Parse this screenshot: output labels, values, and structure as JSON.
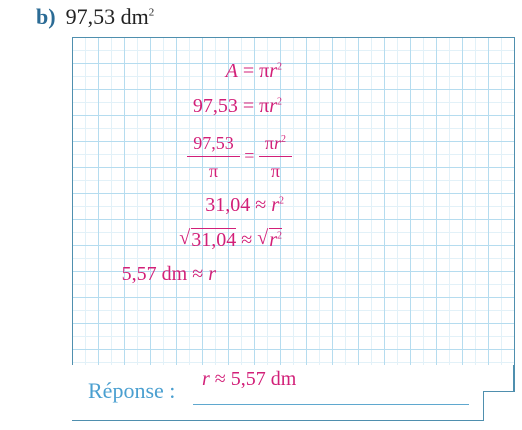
{
  "header": {
    "letter": "b)",
    "value": "97,53 dm",
    "exponent": "2"
  },
  "steps": [
    {
      "id": "s1",
      "left": "A",
      "eq": "=",
      "right_pre": "π",
      "right_var": "r",
      "right_exp": "2"
    },
    {
      "id": "s2",
      "left": "97,53",
      "eq": "=",
      "right_pre": "π",
      "right_var": "r",
      "right_exp": "2"
    },
    {
      "id": "s3",
      "num_left": "97,53",
      "den_left": "π",
      "eq": "=",
      "num_right_pre": "π",
      "num_right_var": "r",
      "num_right_exp": "2",
      "den_right": "π"
    },
    {
      "id": "s4",
      "left": "31,04",
      "eq": "≈",
      "right_var": "r",
      "right_exp": "2"
    },
    {
      "id": "s5",
      "radical": "√",
      "left": "31,04",
      "eq": "≈",
      "right_var": "r",
      "right_exp": "2"
    },
    {
      "id": "s6",
      "left": "5,57 dm",
      "eq": "≈",
      "right_var": "r"
    }
  ],
  "answer": {
    "label": "Réponse :",
    "var": "r",
    "rest": " ≈ 5,57 dm"
  },
  "colors": {
    "accent_pink": "#d21f78",
    "grid_blue": "#8ecbe8",
    "label_blue": "#4a9fd0",
    "header_blue": "#2b6b95"
  }
}
